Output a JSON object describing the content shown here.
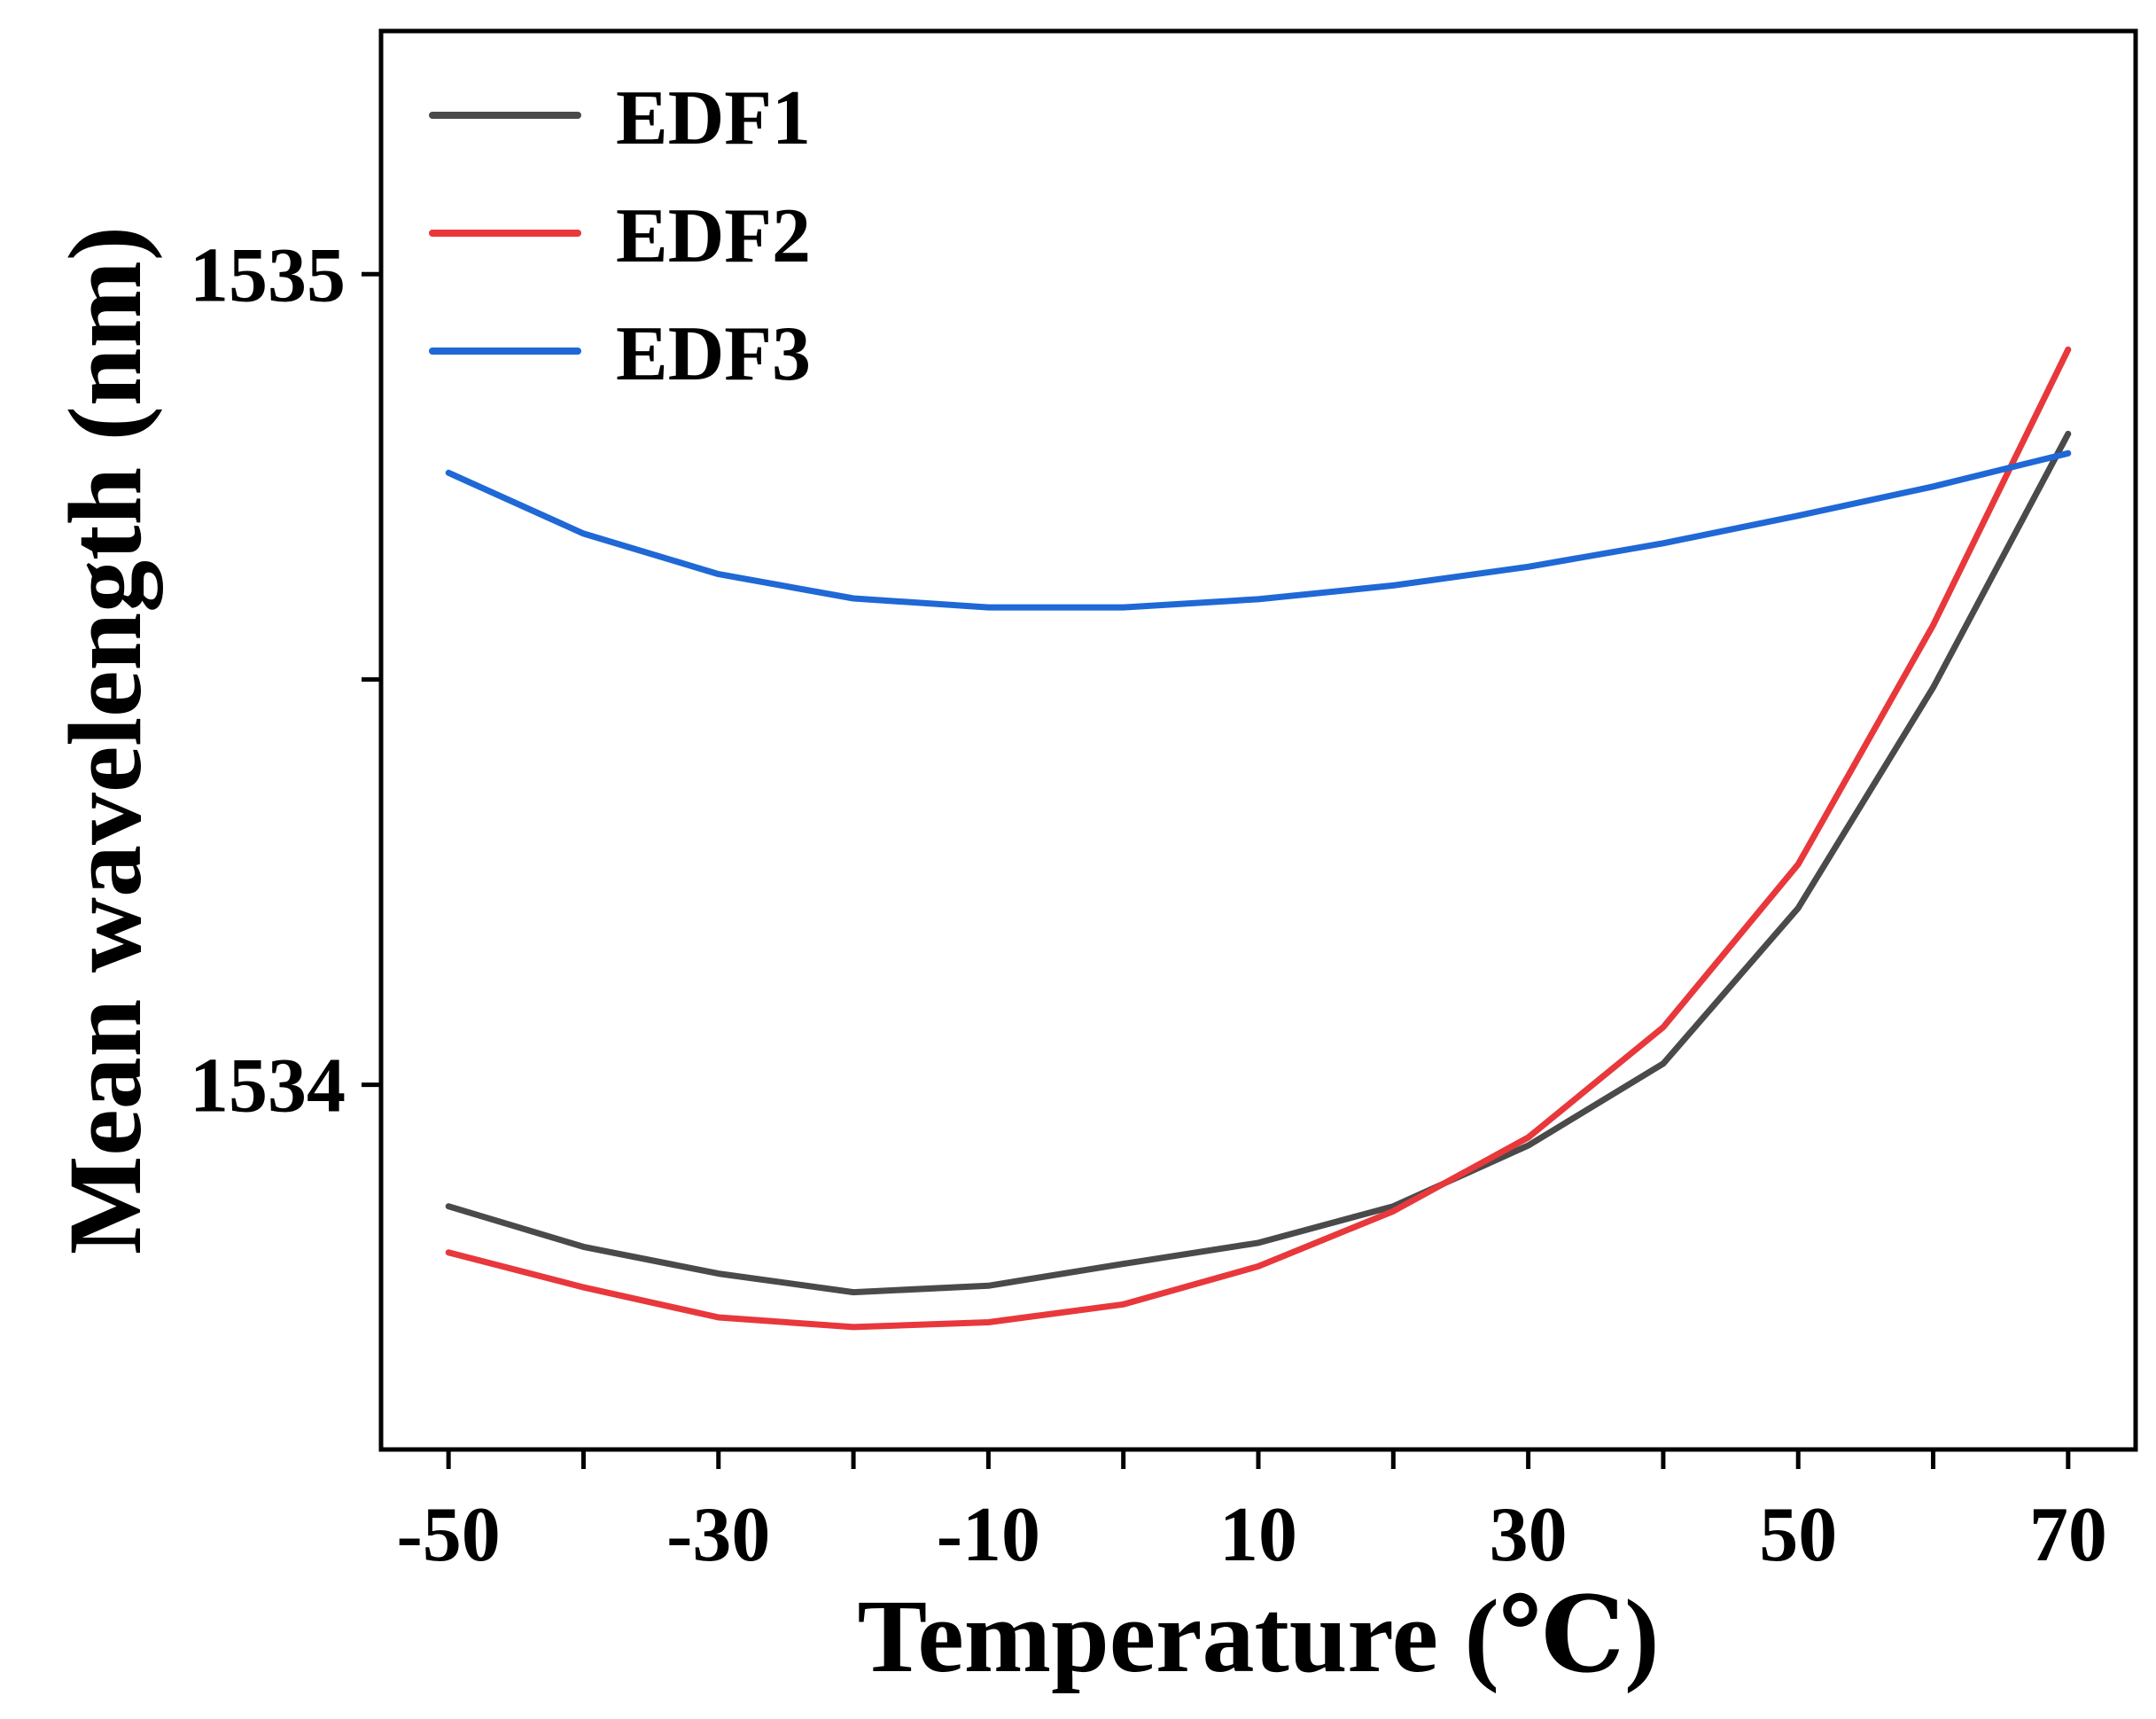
{
  "chart_data": {
    "type": "line",
    "title": "",
    "xlabel": "Temperature (℃)",
    "ylabel": "Mean wavelength (nm)",
    "xlim": [
      -55,
      75
    ],
    "ylim": [
      1533.55,
      1535.3
    ],
    "x_ticks": [
      -50,
      -40,
      -30,
      -20,
      -10,
      0,
      10,
      20,
      30,
      40,
      50,
      60,
      70
    ],
    "x_tick_labels": [
      "-50",
      "",
      "-30",
      "",
      "-10",
      "",
      "10",
      "",
      "30",
      "",
      "50",
      "",
      "70"
    ],
    "y_ticks": [
      1534,
      1534.5,
      1535
    ],
    "y_tick_labels": [
      "1534",
      "",
      "1535"
    ],
    "legend_position": "top-left",
    "x": [
      -50,
      -40,
      -30,
      -20,
      -10,
      0,
      10,
      20,
      30,
      40,
      50,
      60,
      70
    ],
    "series": [
      {
        "name": "EDF1",
        "color": "#4a4a4a",
        "values": [
          1533.85,
          1533.8,
          1533.767,
          1533.744,
          1533.752,
          1533.779,
          1533.805,
          1533.85,
          1533.925,
          1534.026,
          1534.218,
          1534.49,
          1534.803
        ]
      },
      {
        "name": "EDF2",
        "color": "#e8383c",
        "values": [
          1533.793,
          1533.75,
          1533.713,
          1533.701,
          1533.707,
          1533.729,
          1533.776,
          1533.844,
          1533.935,
          1534.071,
          1534.272,
          1534.567,
          1534.907
        ]
      },
      {
        "name": "EDF3",
        "color": "#1f68d6",
        "values": [
          1534.755,
          1534.68,
          1534.63,
          1534.6,
          1534.589,
          1534.589,
          1534.599,
          1534.616,
          1534.639,
          1534.668,
          1534.702,
          1534.738,
          1534.779
        ]
      }
    ]
  }
}
